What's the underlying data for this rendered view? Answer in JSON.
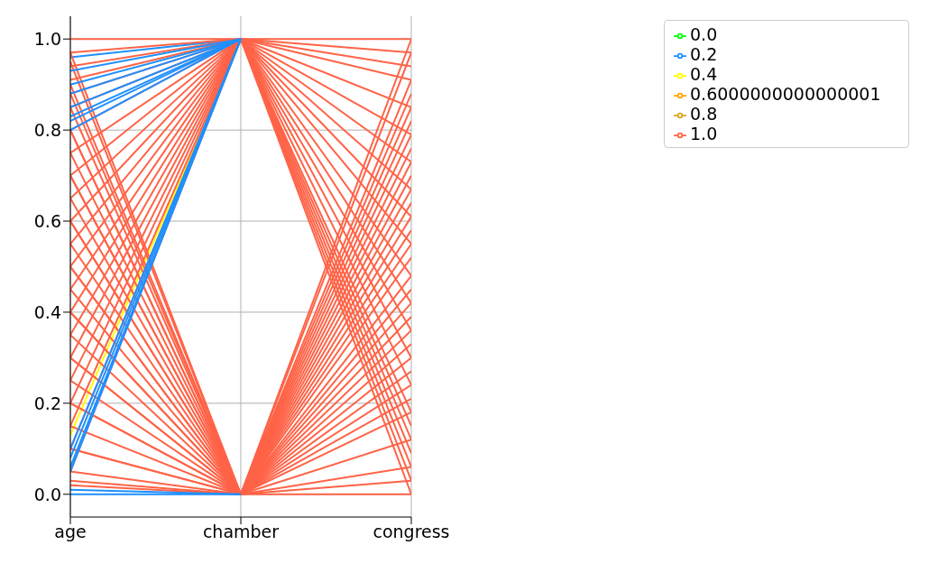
{
  "chart_data": {
    "type": "line",
    "categories": [
      "age",
      "chamber",
      "congress"
    ],
    "ylim": [
      -0.05,
      1.05
    ],
    "yticks": [
      {
        "value": 0,
        "label": "0.0"
      },
      {
        "value": 0.2,
        "label": "0.2"
      },
      {
        "value": 0.4,
        "label": "0.4"
      },
      {
        "value": 0.6,
        "label": "0.6"
      },
      {
        "value": 0.8,
        "label": "0.8"
      },
      {
        "value": 1,
        "label": "1.0"
      }
    ],
    "grid": true,
    "legend": "top right",
    "marker": "none",
    "line_style": "solid",
    "series": [
      {
        "name": "0.0",
        "color": "#00ff00",
        "values": [
          null,
          null,
          null
        ]
      },
      {
        "name": "0.2",
        "color": "#1e90ff",
        "values": [
          0.96,
          1,
          null
        ]
      },
      {
        "name": "0.4",
        "color": "#ffff00",
        "values": [
          0.13,
          1,
          null
        ]
      },
      {
        "name": "0.6000000000000001",
        "color": "#ffa500",
        "values": [
          null,
          null,
          null
        ]
      },
      {
        "name": "0.8",
        "color": "#daa520",
        "values": [
          null,
          null,
          null
        ]
      },
      {
        "name": "1.0",
        "color": "#ff6347",
        "values": [
          1.0,
          1,
          1.0
        ]
      },
      {
        "color": "#ff6347",
        "values": [
          0.97,
          1,
          0.03
        ]
      },
      {
        "color": "#ff6347",
        "values": [
          0.94,
          1,
          0.97
        ]
      },
      {
        "color": "#ff6347",
        "values": [
          0.91,
          1,
          0.06
        ]
      },
      {
        "color": "#ff6347",
        "values": [
          0.88,
          1,
          0.91
        ]
      },
      {
        "color": "#ff6347",
        "values": [
          0.85,
          1,
          0.12
        ]
      },
      {
        "color": "#ff6347",
        "values": [
          0.8,
          1,
          0.85
        ]
      },
      {
        "color": "#ff6347",
        "values": [
          0.75,
          1,
          0.18
        ]
      },
      {
        "color": "#ff6347",
        "values": [
          0.7,
          1,
          0.79
        ]
      },
      {
        "color": "#ff6347",
        "values": [
          0.65,
          1,
          0.24
        ]
      },
      {
        "color": "#ff6347",
        "values": [
          0.6,
          1,
          0.73
        ]
      },
      {
        "color": "#ff6347",
        "values": [
          0.55,
          1,
          0.3
        ]
      },
      {
        "color": "#ff6347",
        "values": [
          0.5,
          1,
          0.67
        ]
      },
      {
        "color": "#ff6347",
        "values": [
          0.45,
          1,
          0.36
        ]
      },
      {
        "color": "#ff6347",
        "values": [
          0.4,
          1,
          0.61
        ]
      },
      {
        "color": "#ff6347",
        "values": [
          0.35,
          1,
          0.42
        ]
      },
      {
        "color": "#ff6347",
        "values": [
          0.3,
          1,
          0.55
        ]
      },
      {
        "color": "#ff6347",
        "values": [
          0.25,
          1,
          0.48
        ]
      },
      {
        "color": "#ff6347",
        "values": [
          0.2,
          1,
          0.0
        ]
      },
      {
        "color": "#ff6347",
        "values": [
          0.15,
          1,
          0.09
        ]
      },
      {
        "color": "#ff6347",
        "values": [
          0.1,
          1,
          0.94
        ]
      },
      {
        "color": "#ff6347",
        "values": [
          0.05,
          1,
          0.15
        ]
      },
      {
        "color": "#ff6347",
        "values": [
          0.85,
          0,
          0.0
        ]
      },
      {
        "color": "#ff6347",
        "values": [
          0.8,
          0,
          1.0
        ]
      },
      {
        "color": "#ff6347",
        "values": [
          0.75,
          0,
          0.03
        ]
      },
      {
        "color": "#ff6347",
        "values": [
          0.7,
          0,
          0.97
        ]
      },
      {
        "color": "#ff6347",
        "values": [
          0.65,
          0,
          0.06
        ]
      },
      {
        "color": "#ff6347",
        "values": [
          0.6,
          0,
          0.91
        ]
      },
      {
        "color": "#ff6347",
        "values": [
          0.55,
          0,
          0.12
        ]
      },
      {
        "color": "#ff6347",
        "values": [
          0.5,
          0,
          0.85
        ]
      },
      {
        "color": "#ff6347",
        "values": [
          0.45,
          0,
          0.18
        ]
      },
      {
        "color": "#ff6347",
        "values": [
          0.4,
          0,
          0.79
        ]
      },
      {
        "color": "#ff6347",
        "values": [
          0.35,
          0,
          0.24
        ]
      },
      {
        "color": "#ff6347",
        "values": [
          0.3,
          0,
          0.73
        ]
      },
      {
        "color": "#ff6347",
        "values": [
          0.25,
          0,
          0.3
        ]
      },
      {
        "color": "#ff6347",
        "values": [
          0.2,
          0,
          0.67
        ]
      },
      {
        "color": "#ff6347",
        "values": [
          0.15,
          0,
          0.36
        ]
      },
      {
        "color": "#ff6347",
        "values": [
          0.1,
          0,
          0.61
        ]
      },
      {
        "color": "#ff6347",
        "values": [
          0.05,
          0,
          0.42
        ]
      },
      {
        "color": "#ff6347",
        "values": [
          0.03,
          0,
          0.55
        ]
      },
      {
        "color": "#ff6347",
        "values": [
          0.9,
          0,
          0.48
        ]
      },
      {
        "color": "#ff6347",
        "values": [
          0.95,
          0,
          0.21
        ]
      },
      {
        "color": "#ff6347",
        "values": [
          0.97,
          0,
          0.88
        ]
      },
      {
        "color": "#ff6347",
        "values": [
          0.02,
          0,
          0.82
        ]
      },
      {
        "color": "#ff6347",
        "values": [
          0.2,
          0,
          0.33
        ]
      },
      {
        "color": "#ff6347",
        "values": [
          0.6,
          0,
          0.64
        ]
      },
      {
        "color": "#ff6347",
        "values": [
          0.4,
          0,
          0.27
        ]
      },
      {
        "color": "#ff6347",
        "values": [
          0.8,
          0,
          0.76
        ]
      },
      {
        "color": "#ff6347",
        "values": [
          0.7,
          0,
          0.39
        ]
      },
      {
        "color": "#ff6347",
        "values": [
          0.5,
          0,
          0.58
        ]
      },
      {
        "color": "#ff6347",
        "values": [
          0.3,
          0,
          0.52
        ]
      },
      {
        "color": "#ff6347",
        "values": [
          0.1,
          0,
          0.45
        ]
      },
      {
        "color": "#ff6347",
        "values": [
          0.88,
          0,
          0.7
        ]
      },
      {
        "color": "#1e90ff",
        "values": [
          0.93,
          1,
          null
        ]
      },
      {
        "color": "#1e90ff",
        "values": [
          0.9,
          1,
          null
        ]
      },
      {
        "color": "#1e90ff",
        "values": [
          0.88,
          1,
          null
        ]
      },
      {
        "color": "#1e90ff",
        "values": [
          0.85,
          1,
          null
        ]
      },
      {
        "color": "#1e90ff",
        "values": [
          0.83,
          1,
          null
        ]
      },
      {
        "color": "#1e90ff",
        "values": [
          0.82,
          1,
          null
        ]
      },
      {
        "color": "#1e90ff",
        "values": [
          0.8,
          1,
          null
        ]
      },
      {
        "color": "#1e90ff",
        "values": [
          0.1,
          1,
          null
        ]
      },
      {
        "color": "#1e90ff",
        "values": [
          0.08,
          1,
          null
        ]
      },
      {
        "color": "#1e90ff",
        "values": [
          0.06,
          1,
          null
        ]
      },
      {
        "color": "#1e90ff",
        "values": [
          0.05,
          1,
          null
        ]
      },
      {
        "color": "#1e90ff",
        "values": [
          0.01,
          0,
          null
        ]
      },
      {
        "color": "#1e90ff",
        "values": [
          0.0,
          0,
          null
        ]
      }
    ]
  }
}
